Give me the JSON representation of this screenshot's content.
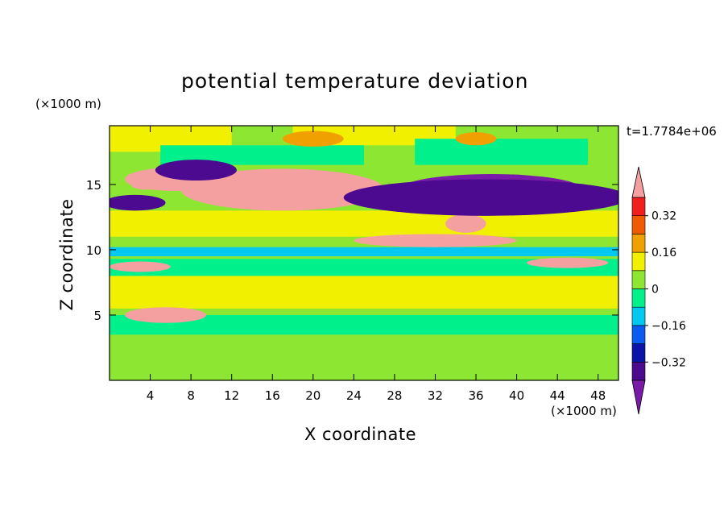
{
  "chart_data": {
    "type": "heatmap",
    "title": "potential temperature deviation",
    "xlabel": "X coordinate",
    "ylabel": "Z coordinate",
    "x_unit": "(×1000 m)",
    "y_unit": "(×1000 m)",
    "time_label": "t=1.7784e+06",
    "xlim": [
      0,
      50
    ],
    "ylim": [
      0,
      19.5
    ],
    "x_ticks": [
      4,
      8,
      12,
      16,
      20,
      24,
      28,
      32,
      36,
      40,
      44,
      48
    ],
    "y_ticks": [
      5,
      10,
      15
    ],
    "colorbar": {
      "levels": [
        -0.48,
        -0.4,
        -0.32,
        -0.24,
        -0.16,
        -0.08,
        0,
        0.08,
        0.16,
        0.24,
        0.32,
        0.4
      ],
      "tick_labels": [
        "0.32",
        "0.16",
        "0",
        "−0.16",
        "−0.32"
      ],
      "tick_values": [
        0.32,
        0.16,
        0,
        -0.16,
        -0.32
      ],
      "colors": [
        "#7a1aa8",
        "#4b0a8f",
        "#0a14a8",
        "#0a5cf0",
        "#00c8f0",
        "#00f08c",
        "#8ce632",
        "#f0f000",
        "#f0a000",
        "#f05a00",
        "#f01e1e",
        "#f5a0a0"
      ],
      "extend": "both"
    },
    "fields": [
      {
        "level": 0.0,
        "x": [
          0,
          50
        ],
        "z": [
          0,
          19.5
        ]
      },
      {
        "level": 0.08,
        "x": [
          0,
          12
        ],
        "z": [
          17.5,
          19.5
        ]
      },
      {
        "level": 0.08,
        "x": [
          18,
          34
        ],
        "z": [
          18,
          19.5
        ]
      },
      {
        "level": 0.08,
        "x": [
          0,
          50
        ],
        "z": [
          11,
          13
        ]
      },
      {
        "level": 0.08,
        "x": [
          0,
          50
        ],
        "z": [
          5.5,
          8
        ]
      },
      {
        "level": -0.08,
        "x": [
          0,
          50
        ],
        "z": [
          8,
          9.3
        ]
      },
      {
        "level": -0.16,
        "x": [
          0,
          50
        ],
        "z": [
          9.5,
          10.2
        ]
      },
      {
        "level": -0.08,
        "x": [
          0,
          50
        ],
        "z": [
          3.5,
          5
        ]
      },
      {
        "level": -0.08,
        "x": [
          5,
          25
        ],
        "z": [
          16.5,
          18
        ]
      },
      {
        "level": -0.08,
        "x": [
          30,
          47
        ],
        "z": [
          16.5,
          18.5
        ]
      }
    ],
    "features": [
      {
        "level": 0.48,
        "cx": 17,
        "cz": 14.6,
        "rx": 10,
        "rz": 1.6
      },
      {
        "level": 0.48,
        "cx": 3.5,
        "cz": 15.0,
        "rx": 1.4,
        "rz": 0.4
      },
      {
        "level": 0.4,
        "cx": 6.5,
        "cz": 15.4,
        "rx": 5,
        "rz": 0.9
      },
      {
        "level": 0.48,
        "cx": 32,
        "cz": 10.7,
        "rx": 8,
        "rz": 0.5
      },
      {
        "level": 0.48,
        "cx": 35,
        "cz": 12.0,
        "rx": 2,
        "rz": 0.7
      },
      {
        "level": 0.48,
        "cx": 45,
        "cz": 9.0,
        "rx": 4,
        "rz": 0.4
      },
      {
        "level": 0.48,
        "cx": 3,
        "cz": 8.7,
        "rx": 3,
        "rz": 0.4
      },
      {
        "level": 0.48,
        "cx": 5.5,
        "cz": 5.0,
        "rx": 4,
        "rz": 0.6
      },
      {
        "level": -0.48,
        "cx": 37.5,
        "cz": 14.6,
        "rx": 9,
        "rz": 1.2
      },
      {
        "level": -0.4,
        "cx": 37,
        "cz": 14.0,
        "rx": 14,
        "rz": 1.4
      },
      {
        "level": -0.4,
        "cx": 8.5,
        "cz": 16.1,
        "rx": 4,
        "rz": 0.8
      },
      {
        "level": -0.4,
        "cx": 2.5,
        "cz": 13.6,
        "rx": 3,
        "rz": 0.6
      },
      {
        "level": 0.16,
        "cx": 20,
        "cz": 18.5,
        "rx": 3,
        "rz": 0.6
      },
      {
        "level": 0.16,
        "cx": 36,
        "cz": 18.5,
        "rx": 2,
        "rz": 0.5
      }
    ]
  }
}
